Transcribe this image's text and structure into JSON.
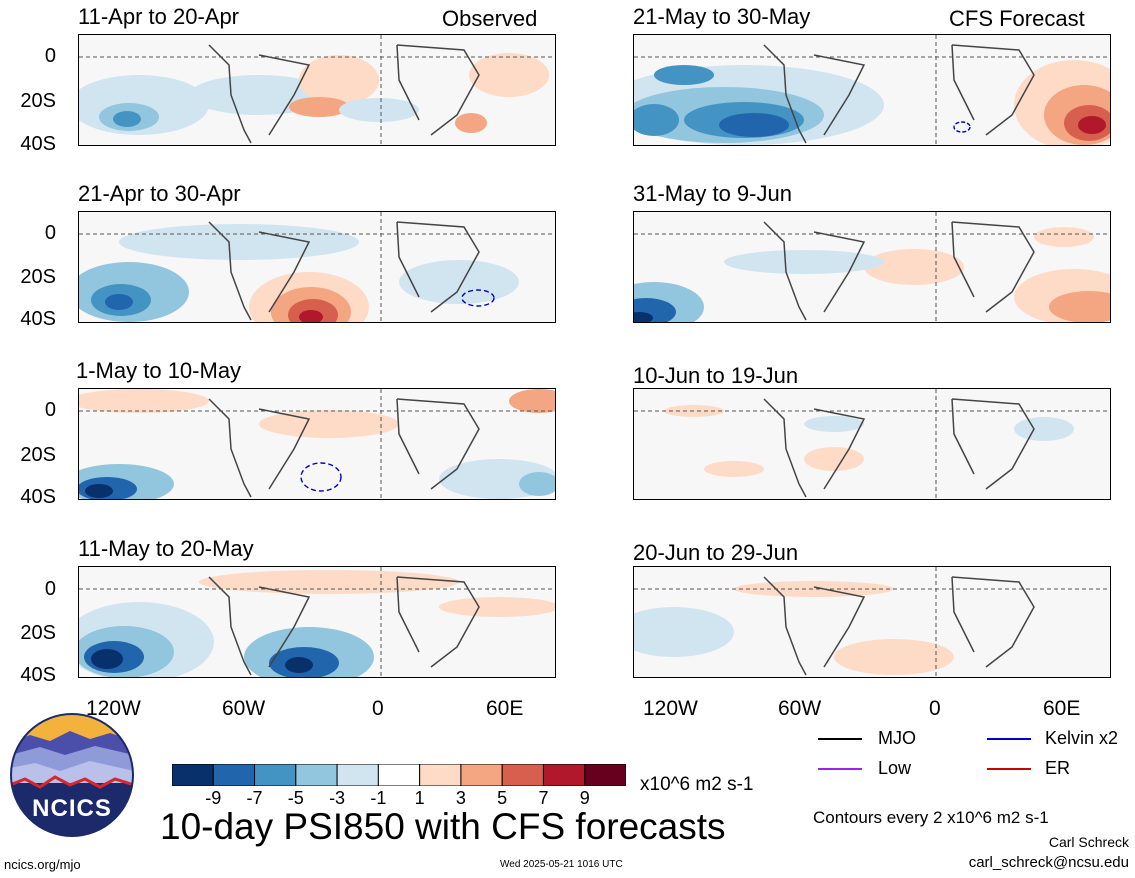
{
  "columns": {
    "observed_label": "Observed",
    "forecast_label": "CFS Forecast"
  },
  "panels": [
    {
      "id": "obs1",
      "title": "11-Apr to 20-Apr"
    },
    {
      "id": "obs2",
      "title": "21-Apr to 30-Apr"
    },
    {
      "id": "obs3",
      "title": "1-May to 10-May"
    },
    {
      "id": "obs4",
      "title": "11-May to 20-May"
    },
    {
      "id": "fc1",
      "title": "21-May to 30-May"
    },
    {
      "id": "fc2",
      "title": "31-May to 9-Jun"
    },
    {
      "id": "fc3",
      "title": "10-Jun to 19-Jun"
    },
    {
      "id": "fc4",
      "title": "20-Jun to 29-Jun"
    }
  ],
  "y_ticks": [
    "0",
    "20S",
    "40S"
  ],
  "x_ticks": [
    "120W",
    "60W",
    "0",
    "60E"
  ],
  "colorbar": {
    "colors": [
      "#08306b",
      "#2166ac",
      "#4393c3",
      "#92c5de",
      "#d1e5f0",
      "#ffffff",
      "#fddbc7",
      "#f4a582",
      "#d6604d",
      "#b2182b",
      "#67001f"
    ],
    "labels": [
      "-9",
      "-7",
      "-5",
      "-3",
      "-1",
      "1",
      "3",
      "5",
      "7",
      "9"
    ],
    "units": "x10^6 m2 s-1"
  },
  "legend": {
    "mjo": "MJO",
    "kelvin": "Kelvin x2",
    "low": "Low",
    "er": "ER",
    "mjo_color": "#000000",
    "kelvin_color": "#0000cc",
    "low_color": "#a020f0",
    "er_color": "#cc0000"
  },
  "main_title": "10-day PSI850 with CFS forecasts",
  "contour_note": "Contours every 2 x10^6 m2 s-1",
  "author": "Carl Schreck",
  "email": "carl_schreck@ncsu.edu",
  "website": "ncics.org/mjo",
  "timestamp": "Wed 2025-05-21 1016 UTC",
  "logo_text": "NCICS"
}
